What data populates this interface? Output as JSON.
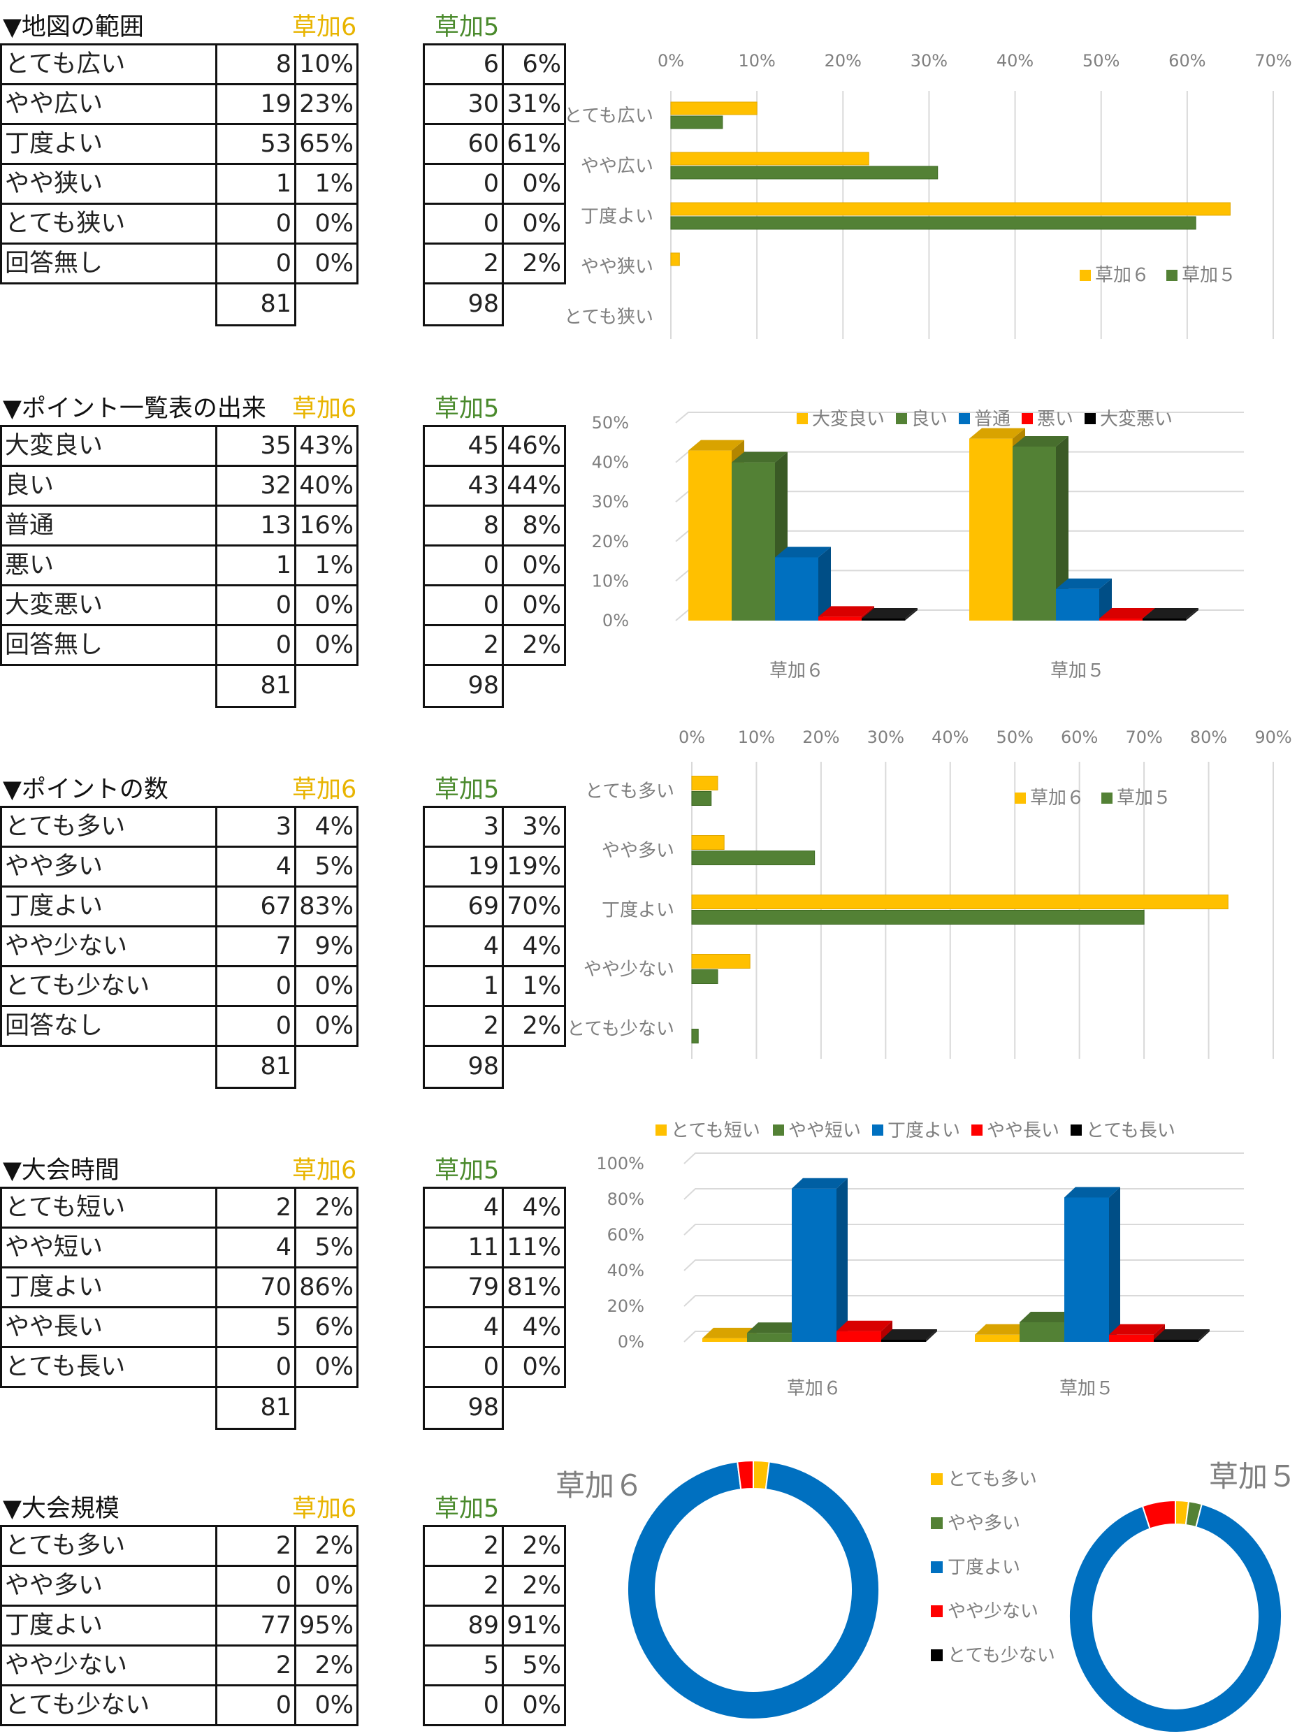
{
  "labels": {
    "s6": "草加6",
    "s5": "草加5"
  },
  "colors": {
    "yellow": "#ffc000",
    "green": "#538135",
    "blue": "#0070c0",
    "red": "#ff0000",
    "black": "#000000",
    "grid": "#d9d9d9",
    "axis_text": "#7f7f7f"
  },
  "sections": [
    {
      "title": "▼地図の範囲",
      "top": 0,
      "rows": [
        {
          "label": "とても広い",
          "n6": "8",
          "p6": "10%",
          "n5": "6",
          "p5": "6%"
        },
        {
          "label": "やや広い",
          "n6": "19",
          "p6": "23%",
          "n5": "30",
          "p5": "31%"
        },
        {
          "label": "丁度よい",
          "n6": "53",
          "p6": "65%",
          "n5": "60",
          "p5": "61%"
        },
        {
          "label": "やや狭い",
          "n6": "1",
          "p6": "1%",
          "n5": "0",
          "p5": "0%"
        },
        {
          "label": "とても狭い",
          "n6": "0",
          "p6": "0%",
          "n5": "0",
          "p5": "0%"
        },
        {
          "label": "回答無し",
          "n6": "0",
          "p6": "0%",
          "n5": "2",
          "p5": "2%"
        }
      ],
      "total6": "81",
      "total5": "98"
    },
    {
      "title": "▼ポイント一覧表の出来",
      "top": 0,
      "rows": [
        {
          "label": "大変良い",
          "n6": "35",
          "p6": "43%",
          "n5": "45",
          "p5": "46%"
        },
        {
          "label": "良い",
          "n6": "32",
          "p6": "40%",
          "n5": "43",
          "p5": "44%"
        },
        {
          "label": "普通",
          "n6": "13",
          "p6": "16%",
          "n5": "8",
          "p5": "8%"
        },
        {
          "label": "悪い",
          "n6": "1",
          "p6": "1%",
          "n5": "0",
          "p5": "0%"
        },
        {
          "label": "大変悪い",
          "n6": "0",
          "p6": "0%",
          "n5": "0",
          "p5": "0%"
        },
        {
          "label": "回答無し",
          "n6": "0",
          "p6": "0%",
          "n5": "2",
          "p5": "2%"
        }
      ],
      "total6": "81",
      "total5": "98"
    },
    {
      "title": "▼ポイントの数",
      "top": 0,
      "rows": [
        {
          "label": "とても多い",
          "n6": "3",
          "p6": "4%",
          "n5": "3",
          "p5": "3%"
        },
        {
          "label": "やや多い",
          "n6": "4",
          "p6": "5%",
          "n5": "19",
          "p5": "19%"
        },
        {
          "label": "丁度よい",
          "n6": "67",
          "p6": "83%",
          "n5": "69",
          "p5": "70%"
        },
        {
          "label": "やや少ない",
          "n6": "7",
          "p6": "9%",
          "n5": "4",
          "p5": "4%"
        },
        {
          "label": "とても少ない",
          "n6": "0",
          "p6": "0%",
          "n5": "1",
          "p5": "1%"
        },
        {
          "label": "回答なし",
          "n6": "0",
          "p6": "0%",
          "n5": "2",
          "p5": "2%"
        }
      ],
      "total6": "81",
      "total5": "98"
    },
    {
      "title": "▼大会時間",
      "top": 0,
      "rows": [
        {
          "label": "とても短い",
          "n6": "2",
          "p6": "2%",
          "n5": "4",
          "p5": "4%"
        },
        {
          "label": "やや短い",
          "n6": "4",
          "p6": "5%",
          "n5": "11",
          "p5": "11%"
        },
        {
          "label": "丁度よい",
          "n6": "70",
          "p6": "86%",
          "n5": "79",
          "p5": "81%"
        },
        {
          "label": "やや長い",
          "n6": "5",
          "p6": "6%",
          "n5": "4",
          "p5": "4%"
        },
        {
          "label": "とても長い",
          "n6": "0",
          "p6": "0%",
          "n5": "0",
          "p5": "0%"
        }
      ],
      "total6": "81",
      "total5": "98"
    },
    {
      "title": "▼大会規模",
      "top": 0,
      "rows": [
        {
          "label": "とても多い",
          "n6": "2",
          "p6": "2%",
          "n5": "2",
          "p5": "2%"
        },
        {
          "label": "やや多い",
          "n6": "0",
          "p6": "0%",
          "n5": "2",
          "p5": "2%"
        },
        {
          "label": "丁度よい",
          "n6": "77",
          "p6": "95%",
          "n5": "89",
          "p5": "91%"
        },
        {
          "label": "やや少ない",
          "n6": "2",
          "p6": "2%",
          "n5": "5",
          "p5": "5%"
        },
        {
          "label": "とても少ない",
          "n6": "0",
          "p6": "0%",
          "n5": "0",
          "p5": "0%"
        }
      ],
      "total6": "",
      "total5": ""
    }
  ],
  "chart_data": [
    {
      "type": "bar",
      "orientation": "horizontal",
      "categories": [
        "とても広い",
        "やや広い",
        "丁度よい",
        "やや狭い",
        "とても狭い"
      ],
      "series": [
        {
          "name": "草加６",
          "values": [
            10,
            23,
            65,
            1,
            0
          ]
        },
        {
          "name": "草加５",
          "values": [
            6,
            31,
            61,
            0,
            0
          ]
        }
      ],
      "xlim": [
        0,
        70
      ],
      "ticks": [
        "0%",
        "10%",
        "20%",
        "30%",
        "40%",
        "50%",
        "60%",
        "70%"
      ],
      "legend": "right",
      "grid": true
    },
    {
      "type": "bar",
      "orientation": "vertical",
      "style": "3d",
      "categories": [
        "草加６",
        "草加５"
      ],
      "series": [
        {
          "name": "大変良い",
          "values": [
            43,
            46
          ]
        },
        {
          "name": "良い",
          "values": [
            40,
            44
          ]
        },
        {
          "name": "普通",
          "values": [
            16,
            8
          ]
        },
        {
          "name": "悪い",
          "values": [
            1,
            0
          ]
        },
        {
          "name": "大変悪い",
          "values": [
            0,
            0
          ]
        }
      ],
      "ylim": [
        0,
        50
      ],
      "ticks": [
        "0%",
        "10%",
        "20%",
        "30%",
        "40%",
        "50%"
      ],
      "legend": "top"
    },
    {
      "type": "bar",
      "orientation": "horizontal",
      "categories": [
        "とても多い",
        "やや多い",
        "丁度よい",
        "やや少ない",
        "とても少ない"
      ],
      "series": [
        {
          "name": "草加６",
          "values": [
            4,
            5,
            83,
            9,
            0
          ]
        },
        {
          "name": "草加５",
          "values": [
            3,
            19,
            70,
            4,
            1
          ]
        }
      ],
      "xlim": [
        0,
        90
      ],
      "ticks": [
        "0%",
        "10%",
        "20%",
        "30%",
        "40%",
        "50%",
        "60%",
        "70%",
        "80%",
        "90%"
      ],
      "legend": "top-right",
      "grid": true
    },
    {
      "type": "bar",
      "orientation": "vertical",
      "style": "3d",
      "categories": [
        "草加６",
        "草加５"
      ],
      "series": [
        {
          "name": "とても短い",
          "values": [
            2,
            4
          ]
        },
        {
          "name": "やや短い",
          "values": [
            5,
            11
          ]
        },
        {
          "name": "丁度よい",
          "values": [
            86,
            81
          ]
        },
        {
          "name": "やや長い",
          "values": [
            6,
            4
          ]
        },
        {
          "name": "とても長い",
          "values": [
            0,
            0
          ]
        }
      ],
      "ylim": [
        0,
        100
      ],
      "ticks": [
        "0%",
        "20%",
        "40%",
        "60%",
        "80%",
        "100%"
      ],
      "legend": "top"
    },
    {
      "type": "pie",
      "style": "donut",
      "titles": [
        "草加６",
        "草加５"
      ],
      "legend_labels": [
        "とても多い",
        "やや多い",
        "丁度よい",
        "やや少ない",
        "とても少ない"
      ],
      "series": [
        {
          "name": "草加６",
          "values": [
            2,
            0,
            95,
            2,
            0
          ]
        },
        {
          "name": "草加５",
          "values": [
            2,
            2,
            91,
            5,
            0
          ]
        }
      ]
    }
  ]
}
